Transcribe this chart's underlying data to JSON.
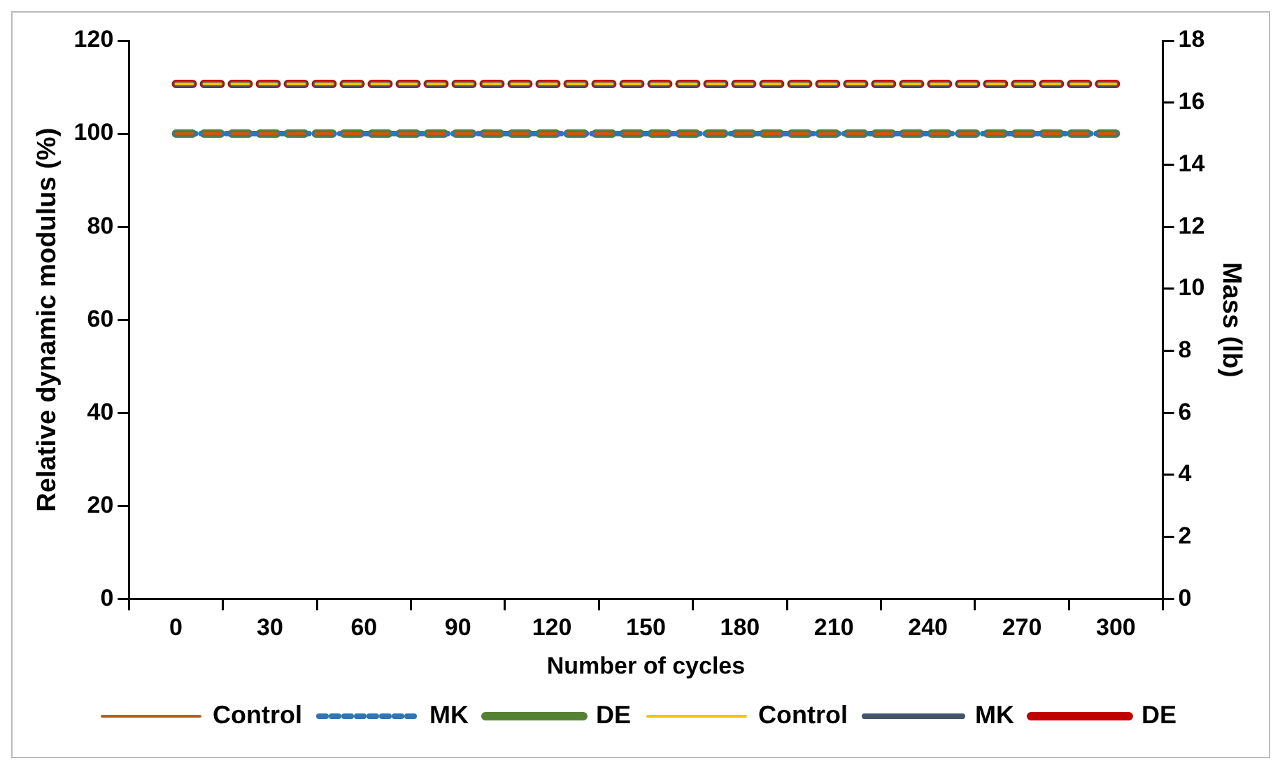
{
  "chart_data": {
    "type": "line",
    "xlabel": "Number of cycles",
    "ylabel": "Relative dynamic modulus (%)",
    "y2label": "Mass (lb)",
    "categories": [
      "0",
      "30",
      "60",
      "90",
      "120",
      "150",
      "180",
      "210",
      "240",
      "270",
      "300"
    ],
    "ylim": [
      0,
      120
    ],
    "yticks": [
      0,
      20,
      40,
      60,
      80,
      100,
      120
    ],
    "y2lim": [
      0,
      18
    ],
    "y2ticks": [
      0,
      2,
      4,
      6,
      8,
      10,
      12,
      14,
      16,
      18
    ],
    "grid": false,
    "legend": "bottom",
    "marker": "none",
    "series": [
      {
        "name": "Control",
        "color": "#c55a11",
        "line_style": "dashed",
        "values": [
          100,
          100,
          100,
          100,
          100,
          100,
          100,
          100,
          100,
          100,
          100
        ]
      },
      {
        "name": "MK",
        "color": "#2e75b6",
        "line_style": "dotted",
        "values": [
          100,
          100,
          100,
          100,
          100,
          100,
          100,
          100,
          100,
          100,
          100
        ]
      },
      {
        "name": "DE",
        "color": "#548235",
        "line_style": "dashed",
        "values": [
          100,
          100,
          100,
          100,
          100,
          100,
          100,
          100,
          100,
          100,
          100
        ]
      },
      {
        "name": "Control",
        "color": "#ffc000",
        "line_style": "dashed",
        "axis": "y2",
        "values": [
          16.6,
          16.6,
          16.6,
          16.6,
          16.6,
          16.6,
          16.6,
          16.6,
          16.6,
          16.6,
          16.6
        ]
      },
      {
        "name": "MK",
        "color": "#44546a",
        "line_style": "dashed",
        "axis": "y2",
        "values": [
          16.6,
          16.6,
          16.6,
          16.6,
          16.6,
          16.6,
          16.6,
          16.6,
          16.6,
          16.6,
          16.6
        ]
      },
      {
        "name": "DE",
        "color": "#c00000",
        "line_style": "dashed",
        "axis": "y2",
        "values": [
          16.6,
          16.6,
          16.6,
          16.6,
          16.6,
          16.6,
          16.6,
          16.6,
          16.6,
          16.6,
          16.6
        ]
      }
    ]
  }
}
